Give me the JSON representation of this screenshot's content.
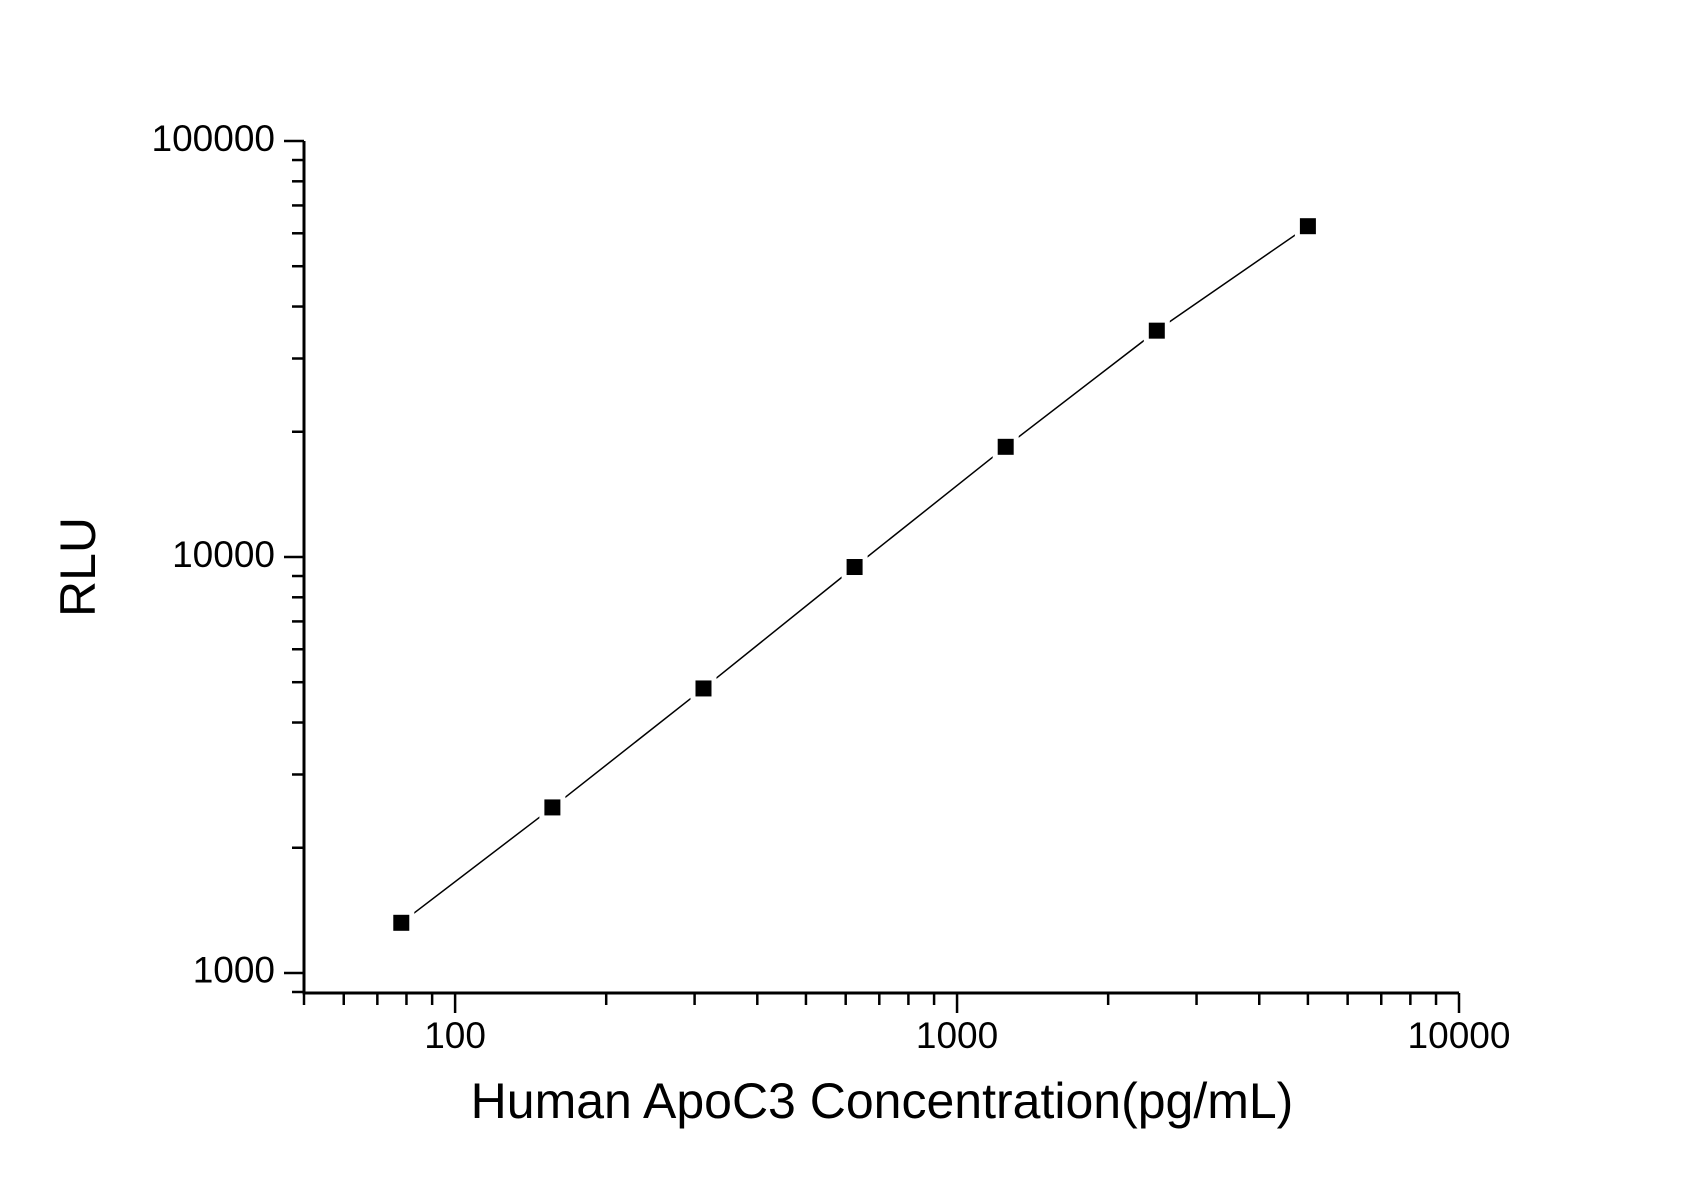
{
  "chart_data": {
    "type": "line",
    "title": "",
    "xlabel": "Human ApoC3 Concentration(pg/mL)",
    "ylabel": "RLU",
    "x_scale": "log",
    "y_scale": "log",
    "x": [
      78.125,
      156.25,
      312.5,
      625,
      1250,
      2500,
      5000
    ],
    "y": [
      1320,
      2500,
      4830,
      9460,
      18400,
      35000,
      62400
    ],
    "xlim": [
      50,
      10000
    ],
    "ylim": [
      895,
      100000
    ],
    "x_ticks_major": [
      100,
      1000,
      10000
    ],
    "x_tick_labels": [
      "100",
      "1000",
      "10000"
    ],
    "y_ticks_major": [
      1000,
      10000,
      100000
    ],
    "y_tick_labels": [
      "1000",
      "10000",
      "100000"
    ],
    "grid": false,
    "legend": "none",
    "marker": "filled-square",
    "colors": {
      "line": "#000000",
      "marker": "#000000",
      "axis": "#000000",
      "text": "#000000",
      "background": "#ffffff"
    }
  }
}
